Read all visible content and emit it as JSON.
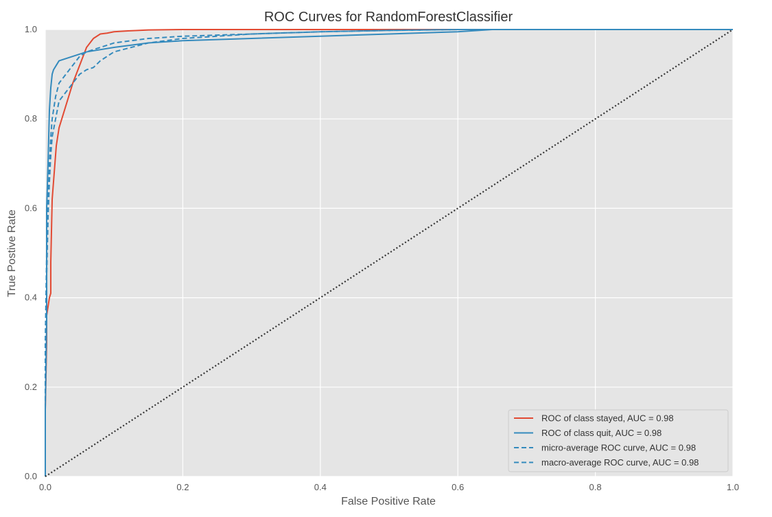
{
  "chart_data": {
    "type": "line",
    "title": "ROC Curves for RandomForestClassifier",
    "xlabel": "False Positive Rate",
    "ylabel": "True Postive Rate",
    "xlim": [
      0.0,
      1.0
    ],
    "ylim": [
      0.0,
      1.0
    ],
    "xticks": [
      "0.0",
      "0.2",
      "0.4",
      "0.6",
      "0.8",
      "1.0"
    ],
    "yticks": [
      "0.0",
      "0.2",
      "0.4",
      "0.6",
      "0.8",
      "1.0"
    ],
    "grid": true,
    "legend_position": "lower-right",
    "colors": {
      "stayed": "#E24A33",
      "quit": "#348ABD",
      "diagonal": "#333333",
      "plot_background": "#E5E5E5",
      "grid": "#FFFFFF"
    },
    "series": [
      {
        "name": "ROC of class stayed, AUC = 0.98",
        "style": "solid",
        "color": "#E24A33",
        "x": [
          0.0,
          0.0,
          0.002,
          0.002,
          0.004,
          0.006,
          0.008,
          0.008,
          0.01,
          0.012,
          0.014,
          0.016,
          0.02,
          0.024,
          0.028,
          0.032,
          0.036,
          0.04,
          0.045,
          0.05,
          0.055,
          0.06,
          0.065,
          0.07,
          0.08,
          0.09,
          0.1,
          0.12,
          0.15,
          0.2,
          0.3,
          0.4,
          0.5,
          0.6,
          0.7,
          0.8,
          0.9,
          1.0
        ],
        "y": [
          0.0,
          0.15,
          0.3,
          0.36,
          0.38,
          0.4,
          0.41,
          0.48,
          0.62,
          0.66,
          0.7,
          0.74,
          0.78,
          0.8,
          0.82,
          0.84,
          0.86,
          0.88,
          0.9,
          0.92,
          0.94,
          0.96,
          0.97,
          0.98,
          0.99,
          0.992,
          0.995,
          0.997,
          0.999,
          1.0,
          1.0,
          1.0,
          1.0,
          1.0,
          1.0,
          1.0,
          1.0,
          1.0
        ]
      },
      {
        "name": "ROC of class quit, AUC = 0.98",
        "style": "solid",
        "color": "#348ABD",
        "x": [
          0.0,
          0.0,
          0.002,
          0.002,
          0.004,
          0.005,
          0.006,
          0.008,
          0.01,
          0.012,
          0.016,
          0.02,
          0.03,
          0.04,
          0.05,
          0.06,
          0.08,
          0.1,
          0.15,
          0.2,
          0.3,
          0.4,
          0.5,
          0.6,
          0.65,
          0.7,
          0.8,
          0.87,
          1.0
        ],
        "y": [
          0.0,
          0.15,
          0.35,
          0.6,
          0.7,
          0.76,
          0.82,
          0.87,
          0.9,
          0.91,
          0.92,
          0.93,
          0.935,
          0.94,
          0.945,
          0.95,
          0.955,
          0.96,
          0.97,
          0.975,
          0.98,
          0.985,
          0.99,
          0.995,
          1.0,
          1.0,
          1.0,
          1.0,
          1.0
        ]
      },
      {
        "name": "micro-average ROC curve, AUC = 0.98",
        "style": "dashed",
        "color": "#348ABD",
        "x": [
          0.0,
          0.0,
          0.002,
          0.004,
          0.006,
          0.008,
          0.01,
          0.015,
          0.02,
          0.03,
          0.04,
          0.05,
          0.06,
          0.08,
          0.1,
          0.15,
          0.2,
          0.3,
          0.4,
          0.5,
          0.6,
          1.0
        ],
        "y": [
          0.0,
          0.3,
          0.5,
          0.62,
          0.7,
          0.76,
          0.8,
          0.85,
          0.88,
          0.9,
          0.92,
          0.94,
          0.95,
          0.96,
          0.97,
          0.98,
          0.985,
          0.99,
          0.995,
          0.998,
          1.0,
          1.0
        ]
      },
      {
        "name": "macro-average ROC curve, AUC = 0.98",
        "style": "dashed",
        "color": "#348ABD",
        "x": [
          0.0,
          0.0,
          0.002,
          0.004,
          0.006,
          0.008,
          0.01,
          0.015,
          0.02,
          0.03,
          0.04,
          0.05,
          0.06,
          0.07,
          0.08,
          0.1,
          0.15,
          0.2,
          0.3,
          0.4,
          0.5,
          0.6,
          1.0
        ],
        "y": [
          0.0,
          0.25,
          0.45,
          0.58,
          0.66,
          0.72,
          0.76,
          0.8,
          0.84,
          0.86,
          0.88,
          0.9,
          0.91,
          0.915,
          0.93,
          0.95,
          0.97,
          0.98,
          0.99,
          0.995,
          0.998,
          1.0,
          1.0
        ]
      }
    ],
    "reference_line": {
      "style": "dotted",
      "color": "#333333",
      "x": [
        0.0,
        1.0
      ],
      "y": [
        0.0,
        1.0
      ]
    }
  }
}
